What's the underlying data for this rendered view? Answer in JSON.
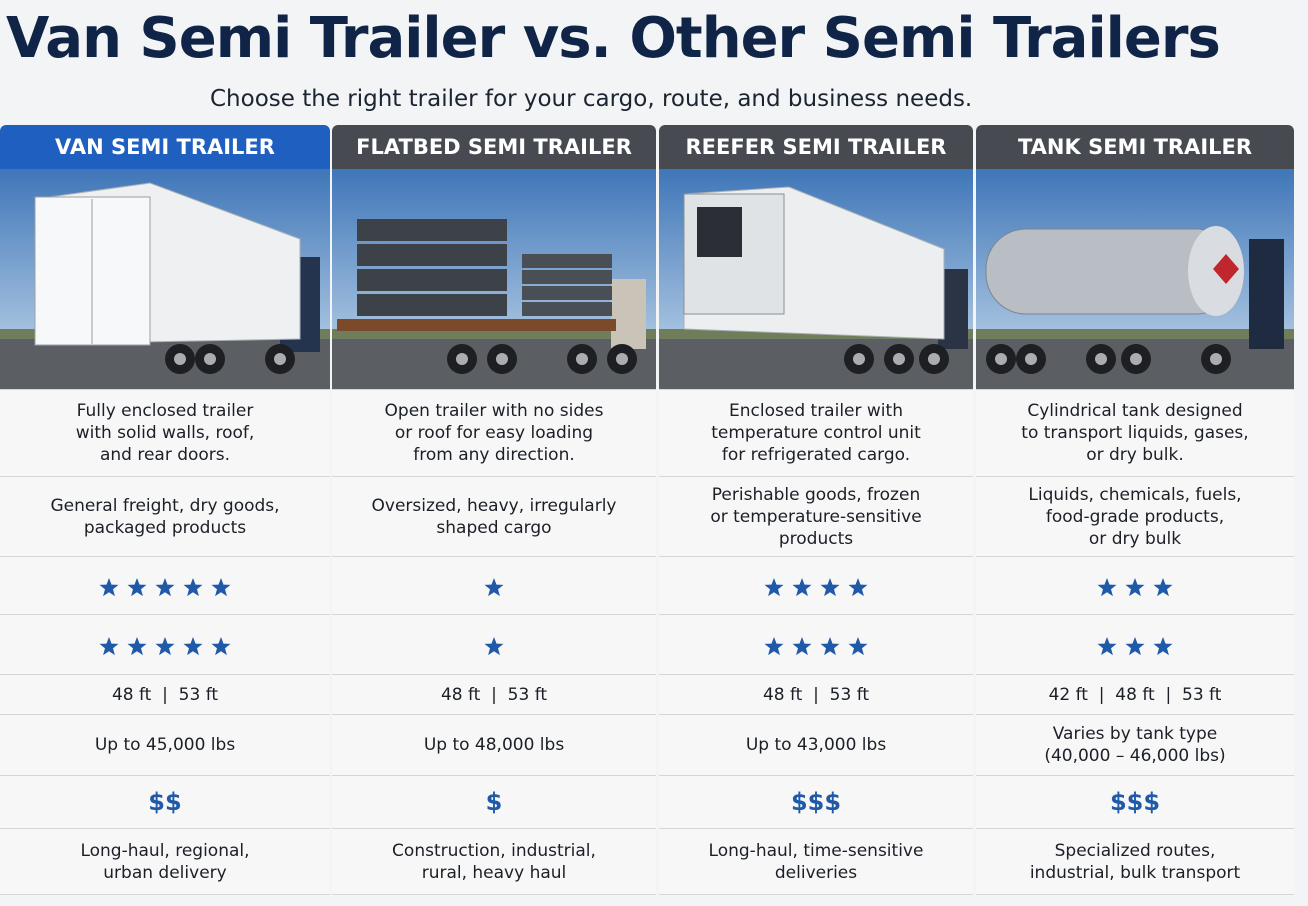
{
  "header": {
    "title": "Van Semi Trailer vs. Other Semi Trailers",
    "subtitle": "Choose the right trailer for your cargo, route, and business needs."
  },
  "table": {
    "columns": [
      {
        "name": "VAN SEMI TRAILER",
        "description": [
          "Fully enclosed trailer",
          "with solid walls, roof,",
          "and rear doors."
        ],
        "best_for": [
          "General freight, dry goods,",
          "packaged products"
        ],
        "rating_1": 5,
        "rating_2": 5,
        "lengths": "48 ft  |  53 ft",
        "capacity": [
          "Up to 45,000 lbs"
        ],
        "cost": "$$",
        "uses": [
          "Long-haul, regional,",
          "urban delivery"
        ]
      },
      {
        "name": "FLATBED SEMI TRAILER",
        "description": [
          "Open trailer with no sides",
          "or roof for easy loading",
          "from any direction."
        ],
        "best_for": [
          "Oversized, heavy, irregularly",
          "shaped cargo"
        ],
        "rating_1": 1,
        "rating_2": 1,
        "lengths": "48 ft  |  53 ft",
        "capacity": [
          "Up to 48,000 lbs"
        ],
        "cost": "$",
        "uses": [
          "Construction, industrial,",
          "rural, heavy haul"
        ]
      },
      {
        "name": "REEFER SEMI TRAILER",
        "description": [
          "Enclosed trailer with",
          "temperature control unit",
          "for refrigerated cargo."
        ],
        "best_for": [
          "Perishable goods, frozen",
          "or temperature-sensitive",
          "products"
        ],
        "rating_1": 4,
        "rating_2": 4,
        "lengths": "48 ft  |  53 ft",
        "capacity": [
          "Up to 43,000 lbs"
        ],
        "cost": "$$$",
        "uses": [
          "Long-haul, time-sensitive",
          "deliveries"
        ]
      },
      {
        "name": "TANK SEMI TRAILER",
        "description": [
          "Cylindrical tank designed",
          "to transport liquids, gases,",
          "or dry bulk."
        ],
        "best_for": [
          "Liquids, chemicals, fuels,",
          "food-grade products,",
          "or dry bulk"
        ],
        "rating_1": 3,
        "rating_2": 3,
        "lengths": "42 ft  |  48 ft  |  53 ft",
        "capacity": [
          "Varies by tank type",
          "(40,000 – 46,000 lbs)"
        ],
        "cost": "$$$",
        "uses": [
          "Specialized routes,",
          "industrial, bulk transport"
        ]
      }
    ]
  }
}
